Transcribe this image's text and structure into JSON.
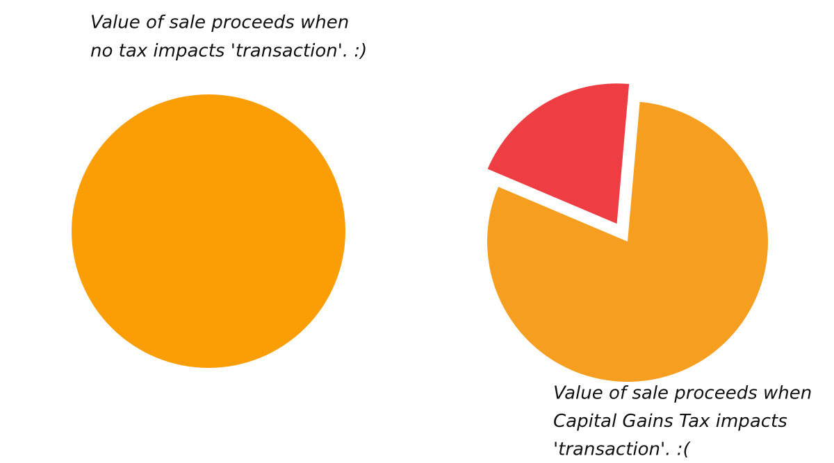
{
  "chart_data": [
    {
      "type": "pie",
      "title": [
        "Value of sale proceeds when",
        "no tax impacts 'transaction'. :)"
      ],
      "values": [
        100
      ],
      "colors": [
        "#fb9d05"
      ],
      "startangle": 0,
      "explode": [
        false
      ]
    },
    {
      "type": "pie",
      "title": [
        "Value of sale proceeds when",
        "Capital Gains Tax impacts",
        "'transaction'.  :("
      ],
      "values": [
        80,
        20
      ],
      "colors": [
        "#f59e20",
        "#ee3e44"
      ],
      "startangle": 5,
      "explode": [
        false,
        true
      ]
    }
  ]
}
